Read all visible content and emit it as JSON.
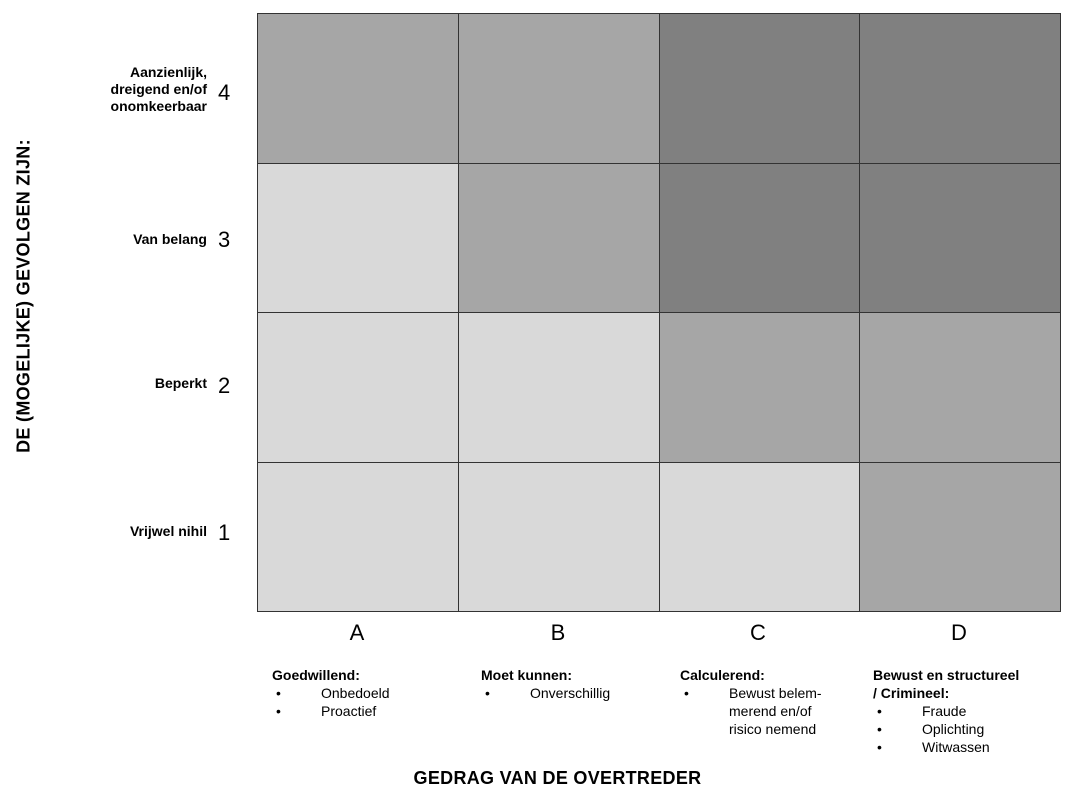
{
  "y_axis_title": "DE (MOGELIJKE) GEVOLGEN ZIJN:",
  "x_axis_title": "GEDRAG VAN DE OVERTREDER",
  "rows": [
    {
      "label": "Aanzienlijk,\ndreigend en/of\nonomkeerbaar",
      "number": "4"
    },
    {
      "label": "Van belang",
      "number": "3"
    },
    {
      "label": "Beperkt",
      "number": "2"
    },
    {
      "label": "Vrijwel nihil",
      "number": "1"
    }
  ],
  "columns": [
    {
      "letter": "A",
      "title": "Goedwillend:",
      "bullets": [
        "Onbedoeld",
        "Proactief"
      ]
    },
    {
      "letter": "B",
      "title": "Moet kunnen:",
      "bullets": [
        "Onverschillig"
      ]
    },
    {
      "letter": "C",
      "title": "Calculerend:",
      "bullets": [
        "Bewust belem-\nmerend en/of\nrisico nemend"
      ]
    },
    {
      "letter": "D",
      "title": "Bewust en structureel\n/ Crimineel:",
      "bullets": [
        "Fraude",
        "Oplichting",
        "Witwassen"
      ]
    }
  ],
  "shades": {
    "light": "#d9d9d9",
    "medium": "#a6a6a6",
    "dark": "#808080"
  },
  "matrix": [
    [
      "medium",
      "medium",
      "dark",
      "dark"
    ],
    [
      "light",
      "medium",
      "dark",
      "dark"
    ],
    [
      "light",
      "light",
      "medium",
      "medium"
    ],
    [
      "light",
      "light",
      "light",
      "medium"
    ]
  ]
}
